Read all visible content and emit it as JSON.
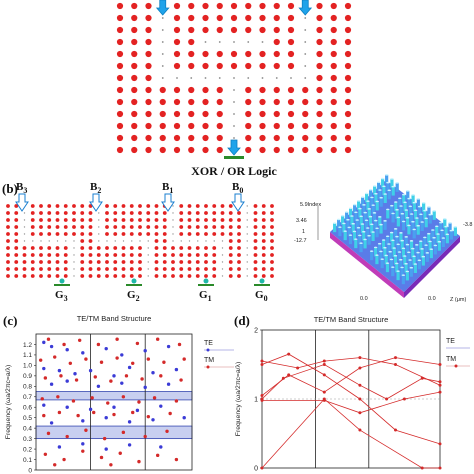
{
  "panel_a": {
    "caption": "XOR / OR Logic"
  },
  "panel_b": {
    "label": "(b)",
    "inputs": [
      {
        "letter": "B",
        "sub": "3"
      },
      {
        "letter": "B",
        "sub": "2"
      },
      {
        "letter": "B",
        "sub": "1"
      },
      {
        "letter": "B",
        "sub": "0"
      }
    ],
    "outputs": [
      {
        "letter": "G",
        "sub": "3"
      },
      {
        "letter": "G",
        "sub": "2"
      },
      {
        "letter": "G",
        "sub": "1"
      },
      {
        "letter": "G",
        "sub": "0"
      }
    ],
    "render_3d": {
      "index_label": "5.9Index",
      "left_ticks": [
        "3.46",
        "1",
        "-12.7"
      ],
      "right_tick": "-3.8",
      "bottom_ticks": [
        "0.0",
        "0.0"
      ],
      "z_label": "Z (μm)"
    }
  },
  "chart_data": [
    {
      "panel": "(c)",
      "type": "scatter",
      "title": "TE/TM Band Structure",
      "xlabel": "",
      "ylabel": "Frequency (ωa/2πc=a/λ)",
      "ylim": [
        0.0,
        1.3
      ],
      "yticks": [
        "0",
        "0.1",
        "0.2",
        "0.3",
        "0.4",
        "0.5",
        "0.6",
        "0.7",
        "0.8",
        "0.9",
        "1.0",
        "1.1",
        "1.2"
      ],
      "legend": [
        "TE",
        "TM"
      ],
      "legend_position": "right",
      "band_gaps": [
        [
          0.3,
          0.42
        ],
        [
          0.67,
          0.75
        ]
      ],
      "series": [
        {
          "name": "TE",
          "color": "#3b3bd6",
          "points": [
            [
              0.05,
              1.22
            ],
            [
              0.1,
              1.18
            ],
            [
              0.2,
              1.15
            ],
            [
              0.3,
              1.12
            ],
            [
              0.45,
              1.16
            ],
            [
              0.55,
              1.1
            ],
            [
              0.7,
              1.14
            ],
            [
              0.85,
              1.18
            ],
            [
              0.05,
              0.97
            ],
            [
              0.15,
              0.95
            ],
            [
              0.25,
              0.92
            ],
            [
              0.35,
              0.95
            ],
            [
              0.5,
              0.9
            ],
            [
              0.6,
              0.98
            ],
            [
              0.75,
              0.93
            ],
            [
              0.9,
              0.96
            ],
            [
              0.1,
              0.82
            ],
            [
              0.2,
              0.85
            ],
            [
              0.4,
              0.8
            ],
            [
              0.55,
              0.83
            ],
            [
              0.7,
              0.79
            ],
            [
              0.85,
              0.82
            ],
            [
              0.05,
              0.62
            ],
            [
              0.2,
              0.6
            ],
            [
              0.35,
              0.58
            ],
            [
              0.5,
              0.6
            ],
            [
              0.65,
              0.57
            ],
            [
              0.8,
              0.61
            ],
            [
              0.1,
              0.45
            ],
            [
              0.3,
              0.47
            ],
            [
              0.45,
              0.5
            ],
            [
              0.6,
              0.46
            ],
            [
              0.75,
              0.48
            ],
            [
              0.95,
              0.5
            ],
            [
              0.15,
              0.22
            ],
            [
              0.3,
              0.25
            ],
            [
              0.45,
              0.2
            ],
            [
              0.6,
              0.24
            ],
            [
              0.8,
              0.22
            ]
          ]
        },
        {
          "name": "TM",
          "color": "#d42a2a",
          "points": [
            [
              0.08,
              1.25
            ],
            [
              0.18,
              1.2
            ],
            [
              0.28,
              1.24
            ],
            [
              0.4,
              1.2
            ],
            [
              0.52,
              1.25
            ],
            [
              0.65,
              1.21
            ],
            [
              0.78,
              1.25
            ],
            [
              0.92,
              1.2
            ],
            [
              0.03,
              1.05
            ],
            [
              0.12,
              1.08
            ],
            [
              0.22,
              1.02
            ],
            [
              0.32,
              1.06
            ],
            [
              0.42,
              1.03
            ],
            [
              0.52,
              1.07
            ],
            [
              0.62,
              1.02
            ],
            [
              0.72,
              1.06
            ],
            [
              0.82,
              1.03
            ],
            [
              0.95,
              1.06
            ],
            [
              0.06,
              0.88
            ],
            [
              0.16,
              0.9
            ],
            [
              0.26,
              0.86
            ],
            [
              0.38,
              0.89
            ],
            [
              0.48,
              0.85
            ],
            [
              0.58,
              0.9
            ],
            [
              0.68,
              0.87
            ],
            [
              0.8,
              0.9
            ],
            [
              0.93,
              0.86
            ],
            [
              0.04,
              0.68
            ],
            [
              0.14,
              0.7
            ],
            [
              0.24,
              0.66
            ],
            [
              0.36,
              0.69
            ],
            [
              0.46,
              0.64
            ],
            [
              0.56,
              0.7
            ],
            [
              0.66,
              0.65
            ],
            [
              0.76,
              0.69
            ],
            [
              0.9,
              0.66
            ],
            [
              0.05,
              0.52
            ],
            [
              0.15,
              0.55
            ],
            [
              0.27,
              0.52
            ],
            [
              0.37,
              0.55
            ],
            [
              0.5,
              0.53
            ],
            [
              0.62,
              0.55
            ],
            [
              0.72,
              0.51
            ],
            [
              0.86,
              0.54
            ],
            [
              0.08,
              0.35
            ],
            [
              0.2,
              0.32
            ],
            [
              0.32,
              0.38
            ],
            [
              0.44,
              0.3
            ],
            [
              0.56,
              0.36
            ],
            [
              0.7,
              0.32
            ],
            [
              0.84,
              0.37
            ],
            [
              0.06,
              0.15
            ],
            [
              0.18,
              0.1
            ],
            [
              0.3,
              0.18
            ],
            [
              0.42,
              0.12
            ],
            [
              0.54,
              0.16
            ],
            [
              0.66,
              0.08
            ],
            [
              0.78,
              0.14
            ],
            [
              0.9,
              0.1
            ],
            [
              0.12,
              0.05
            ],
            [
              0.48,
              0.05
            ]
          ]
        }
      ]
    },
    {
      "panel": "(d)",
      "type": "line",
      "title": "TE/TM Band Structure",
      "xlabel": "",
      "ylabel": "Frequency (ωa/2πc=a/λ)",
      "ylim": [
        0,
        2
      ],
      "yticks": [
        "0",
        "1",
        "2"
      ],
      "legend": [
        "TE",
        "TM"
      ],
      "legend_position": "right",
      "series": [
        {
          "name": "TM",
          "color": "#d42a2a",
          "bands": [
            [
              [
                0,
                0
              ],
              [
                0.35,
                1
              ],
              [
                0.55,
                0.55
              ],
              [
                0.9,
                0
              ],
              [
                1.0,
                0.0
              ]
            ],
            [
              [
                0,
                1.0
              ],
              [
                0.12,
                1.3
              ],
              [
                0.35,
                1.5
              ],
              [
                0.55,
                1.2
              ],
              [
                0.7,
                1.0
              ],
              [
                0.9,
                1.3
              ],
              [
                1.0,
                1.25
              ]
            ],
            [
              [
                0,
                1.05
              ],
              [
                0.15,
                1.35
              ],
              [
                0.35,
                1.1
              ],
              [
                0.55,
                1.45
              ],
              [
                0.75,
                1.6
              ],
              [
                1.0,
                1.5
              ]
            ],
            [
              [
                0,
                1.5
              ],
              [
                0.15,
                1.65
              ],
              [
                0.35,
                1.35
              ],
              [
                0.55,
                1.0
              ],
              [
                0.75,
                0.55
              ],
              [
                1.0,
                0.35
              ]
            ],
            [
              [
                0,
                1.55
              ],
              [
                0.2,
                1.45
              ],
              [
                0.35,
                1.55
              ],
              [
                0.55,
                1.6
              ],
              [
                0.75,
                1.5
              ],
              [
                1.0,
                1.2
              ]
            ],
            [
              [
                0,
                0.98
              ],
              [
                0.35,
                0.98
              ],
              [
                0.55,
                0.8
              ],
              [
                0.8,
                1.0
              ],
              [
                1.0,
                1.1
              ]
            ]
          ]
        }
      ]
    }
  ]
}
